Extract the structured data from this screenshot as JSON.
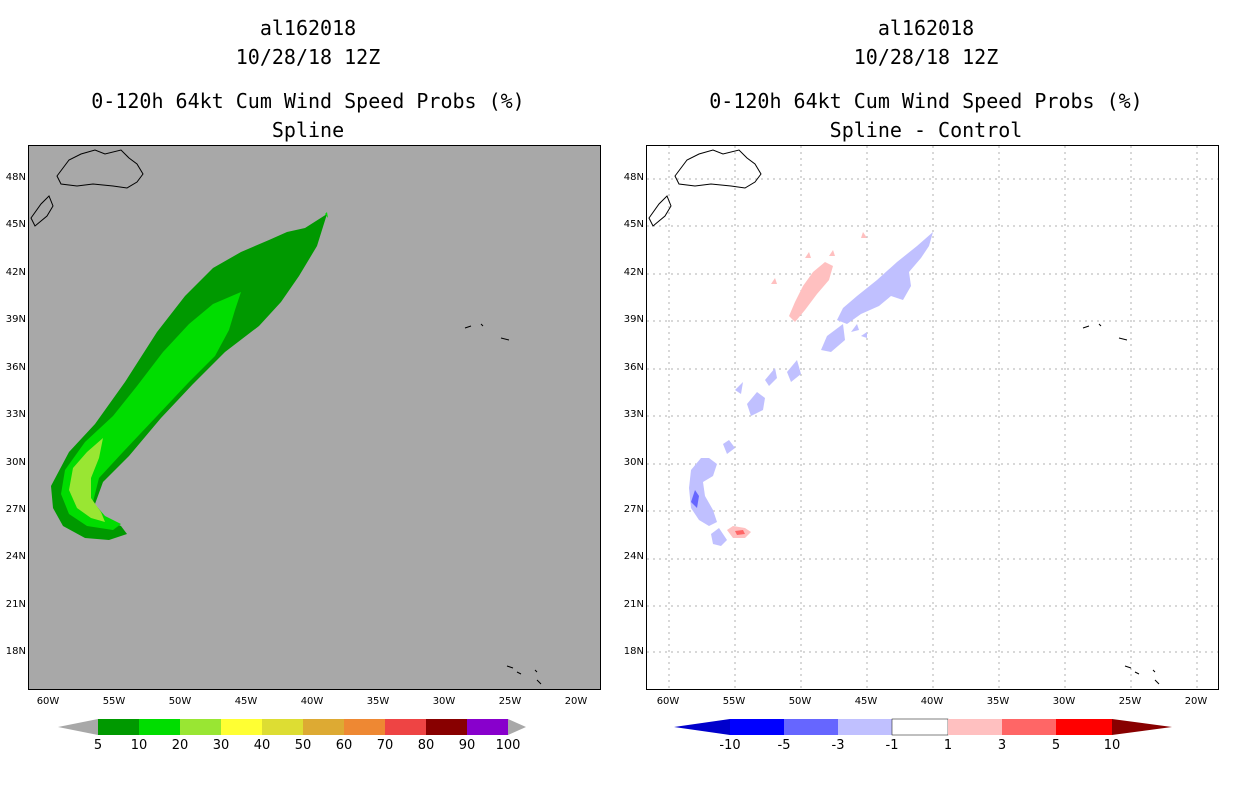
{
  "left_panel": {
    "storm_id": "al162018",
    "datetime": "10/28/18 12Z",
    "product": "0-120h 64kt Cum Wind Speed Probs (%)",
    "subtitle": "Spline",
    "background_color": "#a8a8a8",
    "colorbar": {
      "labels": [
        "5",
        "10",
        "20",
        "30",
        "40",
        "50",
        "60",
        "70",
        "80",
        "90",
        "100"
      ],
      "colors": [
        "#009900",
        "#00dd00",
        "#99e633",
        "#ffff33",
        "#dddd33",
        "#ddaa33",
        "#ee8833",
        "#ee4444",
        "#880000",
        "#8800cc"
      ]
    }
  },
  "right_panel": {
    "storm_id": "al162018",
    "datetime": "10/28/18 12Z",
    "product": "0-120h 64kt Cum Wind Speed Probs (%)",
    "subtitle": "Spline - Control",
    "colorbar": {
      "labels": [
        "-10",
        "-5",
        "-3",
        "-1",
        "1",
        "3",
        "5",
        "10"
      ],
      "colors": [
        "#0000cc",
        "#0000ff",
        "#6666ff",
        "#c0c0ff",
        "#ffffff",
        "#ffc0c0",
        "#ff6666",
        "#ff0000",
        "#880000"
      ]
    }
  },
  "axes": {
    "lat_labels": [
      "48N",
      "45N",
      "42N",
      "39N",
      "36N",
      "33N",
      "30N",
      "27N",
      "24N",
      "21N",
      "18N"
    ],
    "lon_labels": [
      "60W",
      "55W",
      "50W",
      "45W",
      "40W",
      "35W",
      "30W",
      "25W",
      "20W"
    ]
  }
}
